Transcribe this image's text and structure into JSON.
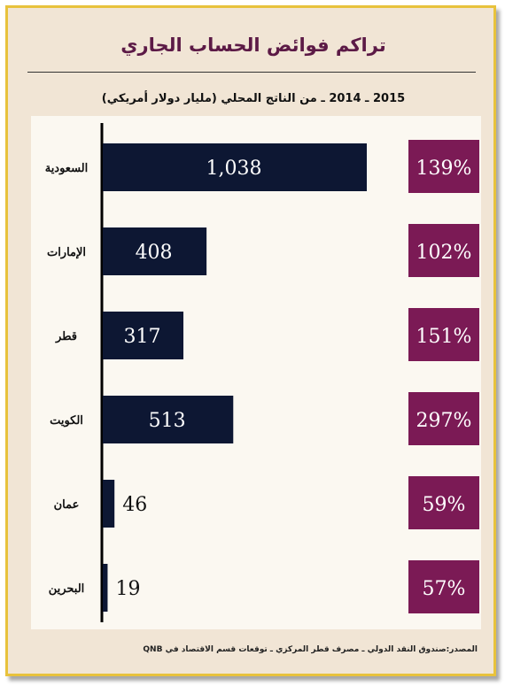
{
  "title": "تراكم فوائض الحساب الجاري",
  "subtitle": "2015 ـ 2014 ـ من الناتج المحلي (مليار دولار أمريكي)",
  "source": "المصدر:صندوق النقد الدولي ـ مصرف قطر المركزي ـ توقعات قسم الاقتصاد في QNB",
  "colors": {
    "bar": "#0d1733",
    "pct_box": "#7b1a55",
    "frame": "#e8c23c",
    "background": "#f1e5d5"
  },
  "chart_data": {
    "type": "bar",
    "orientation": "horizontal",
    "categories": [
      "السعودية",
      "الإمارات",
      "قطر",
      "الكويت",
      "عمان",
      "البحرين"
    ],
    "values": [
      1038,
      408,
      317,
      513,
      46,
      19
    ],
    "value_labels": [
      "1,038",
      "408",
      "317",
      "513",
      "46",
      "19"
    ],
    "percent_labels": [
      "139%",
      "102%",
      "151%",
      "297%",
      "59%",
      "57%"
    ],
    "xlim": [
      0,
      1038
    ],
    "grid": false
  }
}
